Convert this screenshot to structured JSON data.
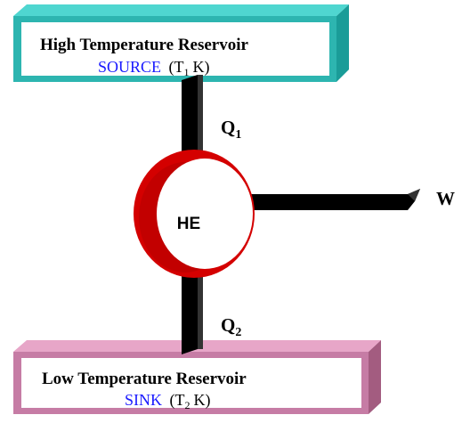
{
  "source": {
    "title": "High Temperature Reservoir",
    "name": "SOURCE",
    "temp": "(T",
    "sub": "1",
    "unit": "K)"
  },
  "heat_in": {
    "label": "Q",
    "sub": "1"
  },
  "engine": {
    "label": "HE"
  },
  "work": {
    "label": "W"
  },
  "heat_out": {
    "label": "Q",
    "sub": "2"
  },
  "sink": {
    "title": "Low Temperature Reservoir",
    "name": "SINK",
    "temp": "(T",
    "sub": "2",
    "unit": "K)"
  }
}
